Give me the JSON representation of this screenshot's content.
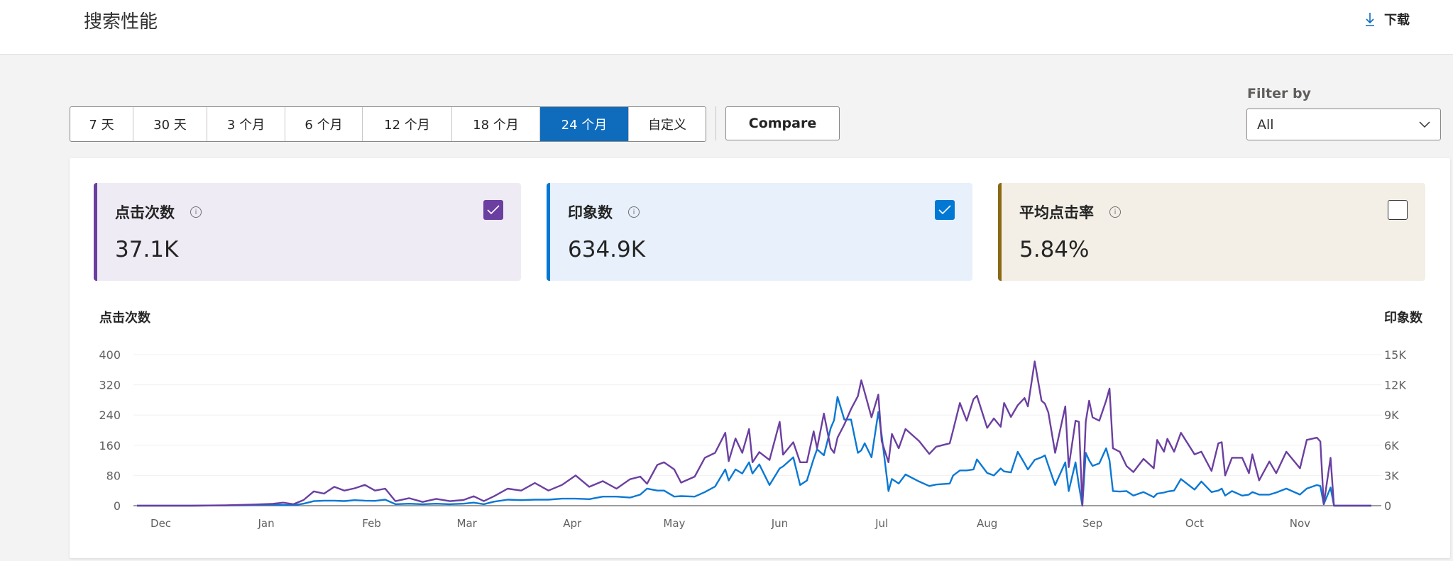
{
  "header": {
    "title": "搜索性能",
    "download_label": "下载",
    "download_icon": "download-arrow-icon"
  },
  "ranges": {
    "items": [
      "7 天",
      "30 天",
      "3 个月",
      "6 个月",
      "12 个月",
      "18 个月",
      "24 个月",
      "自定义"
    ],
    "active": "24 个月"
  },
  "compare_label": "Compare",
  "filter": {
    "label": "Filter by",
    "value": "All"
  },
  "metrics": [
    {
      "label": "点击次数",
      "value": "37.1K",
      "checked": true,
      "accent": "#6b3fa0",
      "bg": "#efebf5"
    },
    {
      "label": "印象数",
      "value": "634.9K",
      "checked": true,
      "accent": "#0078d4",
      "bg": "#e7f0fb"
    },
    {
      "label": "平均点击率",
      "value": "5.84%",
      "checked": false,
      "accent": "#8a6914",
      "bg": "#f3efe6"
    }
  ],
  "chart_data": {
    "type": "line",
    "left_axis_label": "点击次数",
    "right_axis_label": "印象数",
    "left_ylim": [
      0,
      400
    ],
    "left_ticks": [
      "0",
      "80",
      "160",
      "240",
      "320",
      "400"
    ],
    "right_ylim": [
      0,
      15000
    ],
    "right_ticks": [
      "0",
      "3K",
      "6K",
      "9K",
      "12K",
      "15K"
    ],
    "x_ticks": [
      "Dec",
      "Jan",
      "Feb",
      "Mar",
      "Apr",
      "May",
      "Jun",
      "Jul",
      "Aug",
      "Sep",
      "Oct",
      "Nov"
    ],
    "grid": true,
    "series_colors": {
      "clicks": "#6b3fa0",
      "impressions": "#0a78d4"
    },
    "columns": [
      "date",
      "clicks",
      "impressions"
    ],
    "points": [
      [
        "11-24",
        0,
        0
      ],
      [
        "12-01",
        0,
        0
      ],
      [
        "12-10",
        0,
        0
      ],
      [
        "12-20",
        1,
        20
      ],
      [
        "12-28",
        3,
        50
      ],
      [
        "01-03",
        5,
        100
      ],
      [
        "01-06",
        8,
        60
      ],
      [
        "01-09",
        4,
        50
      ],
      [
        "01-12",
        15,
        200
      ],
      [
        "01-15",
        38,
        450
      ],
      [
        "01-18",
        32,
        500
      ],
      [
        "01-21",
        50,
        500
      ],
      [
        "01-24",
        40,
        460
      ],
      [
        "01-27",
        46,
        550
      ],
      [
        "01-30",
        55,
        500
      ],
      [
        "02-02",
        40,
        480
      ],
      [
        "02-05",
        45,
        600
      ],
      [
        "02-08",
        12,
        150
      ],
      [
        "02-12",
        20,
        200
      ],
      [
        "02-16",
        10,
        150
      ],
      [
        "02-20",
        18,
        200
      ],
      [
        "02-24",
        12,
        150
      ],
      [
        "02-28",
        15,
        200
      ],
      [
        "03-03",
        25,
        300
      ],
      [
        "03-06",
        12,
        150
      ],
      [
        "03-09",
        25,
        400
      ],
      [
        "03-13",
        45,
        600
      ],
      [
        "03-17",
        40,
        550
      ],
      [
        "03-21",
        60,
        600
      ],
      [
        "03-25",
        40,
        600
      ],
      [
        "03-29",
        55,
        700
      ],
      [
        "04-02",
        80,
        700
      ],
      [
        "04-06",
        50,
        650
      ],
      [
        "04-10",
        65,
        900
      ],
      [
        "04-14",
        45,
        900
      ],
      [
        "04-18",
        70,
        800
      ],
      [
        "04-21",
        77,
        1100
      ],
      [
        "04-23",
        58,
        1700
      ],
      [
        "04-26",
        108,
        1500
      ],
      [
        "04-28",
        115,
        1500
      ],
      [
        "05-01",
        96,
        900
      ],
      [
        "05-03",
        61,
        950
      ],
      [
        "05-07",
        77,
        900
      ],
      [
        "05-10",
        127,
        1350
      ],
      [
        "05-13",
        140,
        1900
      ],
      [
        "05-16",
        193,
        3600
      ],
      [
        "05-17",
        118,
        2500
      ],
      [
        "05-19",
        178,
        3600
      ],
      [
        "05-21",
        140,
        3200
      ],
      [
        "05-23",
        203,
        4300
      ],
      [
        "05-24",
        115,
        3200
      ],
      [
        "05-26",
        142,
        4100
      ],
      [
        "05-29",
        121,
        2050
      ],
      [
        "06-01",
        222,
        3700
      ],
      [
        "06-02",
        135,
        3900
      ],
      [
        "06-05",
        168,
        4800
      ],
      [
        "06-07",
        115,
        2050
      ],
      [
        "06-09",
        115,
        2500
      ],
      [
        "06-11",
        197,
        4650
      ],
      [
        "06-12",
        152,
        5600
      ],
      [
        "06-14",
        244,
        5000
      ],
      [
        "06-16",
        152,
        7700
      ],
      [
        "06-17",
        140,
        8500
      ],
      [
        "06-18",
        180,
        10800
      ],
      [
        "06-20",
        215,
        8550
      ],
      [
        "06-22",
        256,
        8550
      ],
      [
        "06-24",
        290,
        5250
      ],
      [
        "06-25",
        332,
        5500
      ],
      [
        "06-26",
        300,
        6200
      ],
      [
        "06-28",
        234,
        4800
      ],
      [
        "06-30",
        294,
        9300
      ],
      [
        "07-01",
        171,
        7000
      ],
      [
        "07-03",
        115,
        1450
      ],
      [
        "07-04",
        190,
        2650
      ],
      [
        "07-06",
        152,
        2200
      ],
      [
        "07-08",
        203,
        3100
      ],
      [
        "07-12",
        171,
        2400
      ],
      [
        "07-15",
        137,
        1950
      ],
      [
        "07-17",
        156,
        2100
      ],
      [
        "07-21",
        165,
        2200
      ],
      [
        "07-22",
        200,
        3000
      ],
      [
        "07-24",
        272,
        3500
      ],
      [
        "07-26",
        225,
        3500
      ],
      [
        "07-28",
        282,
        3600
      ],
      [
        "07-29",
        291,
        4600
      ],
      [
        "08-01",
        206,
        3250
      ],
      [
        "08-03",
        231,
        3000
      ],
      [
        "08-05",
        209,
        3700
      ],
      [
        "08-06",
        272,
        3400
      ],
      [
        "08-08",
        235,
        3300
      ],
      [
        "08-10",
        266,
        5350
      ],
      [
        "08-12",
        285,
        4200
      ],
      [
        "08-13",
        263,
        3600
      ],
      [
        "08-15",
        382,
        4550
      ],
      [
        "08-17",
        278,
        4800
      ],
      [
        "08-18",
        270,
        5000
      ],
      [
        "08-19",
        247,
        4000
      ],
      [
        "08-21",
        140,
        2050
      ],
      [
        "08-24",
        263,
        4300
      ],
      [
        "08-25",
        102,
        1450
      ],
      [
        "08-27",
        225,
        4300
      ],
      [
        "08-28",
        222,
        2000
      ],
      [
        "08-29",
        0,
        0
      ],
      [
        "08-30",
        222,
        5250
      ],
      [
        "08-31",
        278,
        4500
      ],
      [
        "09-01",
        234,
        3950
      ],
      [
        "09-03",
        225,
        4200
      ],
      [
        "09-05",
        278,
        5700
      ],
      [
        "09-06",
        310,
        4500
      ],
      [
        "09-07",
        152,
        1450
      ],
      [
        "09-09",
        143,
        1400
      ],
      [
        "09-11",
        105,
        1450
      ],
      [
        "09-13",
        89,
        1000
      ],
      [
        "09-16",
        124,
        1350
      ],
      [
        "09-19",
        99,
        850
      ],
      [
        "09-20",
        174,
        1200
      ],
      [
        "09-22",
        143,
        1300
      ],
      [
        "09-23",
        177,
        1400
      ],
      [
        "09-25",
        143,
        1500
      ],
      [
        "09-27",
        193,
        2650
      ],
      [
        "10-01",
        136,
        1600
      ],
      [
        "10-03",
        143,
        2400
      ],
      [
        "10-06",
        92,
        1350
      ],
      [
        "10-08",
        165,
        1500
      ],
      [
        "10-09",
        168,
        1700
      ],
      [
        "10-10",
        80,
        1000
      ],
      [
        "10-12",
        127,
        1450
      ],
      [
        "10-15",
        127,
        1000
      ],
      [
        "10-17",
        86,
        1100
      ],
      [
        "10-18",
        136,
        1350
      ],
      [
        "10-20",
        67,
        1100
      ],
      [
        "10-23",
        117,
        1100
      ],
      [
        "10-25",
        86,
        1300
      ],
      [
        "10-28",
        143,
        1700
      ],
      [
        "11-01",
        99,
        1100
      ],
      [
        "11-03",
        174,
        1700
      ],
      [
        "11-06",
        180,
        2050
      ],
      [
        "11-07",
        170,
        1950
      ],
      [
        "11-08",
        4,
        150
      ],
      [
        "11-10",
        127,
        1800
      ],
      [
        "11-11",
        0,
        0
      ],
      [
        "11-16",
        0,
        0
      ],
      [
        "11-22",
        0,
        0
      ]
    ]
  }
}
